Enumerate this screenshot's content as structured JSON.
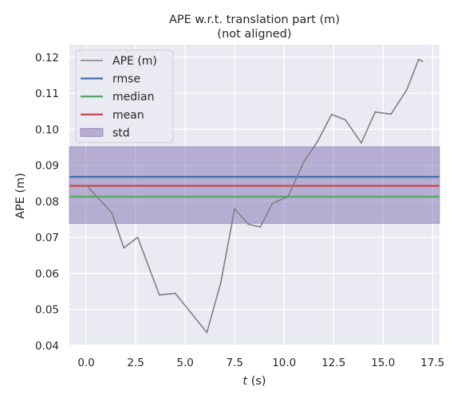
{
  "chart_data": {
    "type": "line",
    "title": "APE w.r.t. translation part (m)",
    "subtitle": "(not aligned)",
    "xlabel_italic": "t",
    "xlabel_suffix": " (s)",
    "ylabel": "APE (m)",
    "xlim": [
      -0.85,
      17.85
    ],
    "ylim": [
      0.04,
      0.1235
    ],
    "x_ticks": [
      0.0,
      2.5,
      5.0,
      7.5,
      10.0,
      12.5,
      15.0,
      17.5
    ],
    "x_tick_labels": [
      "0.0",
      "2.5",
      "5.0",
      "7.5",
      "10.0",
      "12.5",
      "15.0",
      "17.5"
    ],
    "y_ticks": [
      0.04,
      0.05,
      0.06,
      0.07,
      0.08,
      0.09,
      0.1,
      0.11,
      0.12
    ],
    "y_tick_labels": [
      "0.04",
      "0.05",
      "0.06",
      "0.07",
      "0.08",
      "0.09",
      "0.10",
      "0.11",
      "0.12"
    ],
    "grid": true,
    "legend_placement": "upper-left",
    "series": [
      {
        "name": "APE (m)",
        "color": "#808080",
        "x": [
          0.0,
          1.3,
          1.9,
          2.6,
          3.7,
          4.5,
          6.1,
          6.8,
          7.5,
          8.2,
          8.8,
          9.4,
          10.2,
          11.0,
          11.7,
          12.4,
          13.1,
          13.9,
          14.6,
          15.4,
          16.2,
          16.8,
          17.0
        ],
        "y": [
          0.0845,
          0.0768,
          0.0671,
          0.07,
          0.054,
          0.0545,
          0.0436,
          0.0574,
          0.0779,
          0.0736,
          0.0729,
          0.0794,
          0.0813,
          0.091,
          0.0967,
          0.1041,
          0.1026,
          0.0962,
          0.1048,
          0.1042,
          0.111,
          0.1194,
          0.1188
        ]
      }
    ],
    "stats": [
      {
        "name": "rmse",
        "value": 0.0868,
        "color": "#4c72b0"
      },
      {
        "name": "median",
        "value": 0.0813,
        "color": "#55a868"
      },
      {
        "name": "mean",
        "value": 0.0843,
        "color": "#c44e52"
      }
    ],
    "std_band": {
      "name": "std",
      "lower": 0.0739,
      "upper": 0.0951,
      "color": "#8172b2"
    }
  }
}
